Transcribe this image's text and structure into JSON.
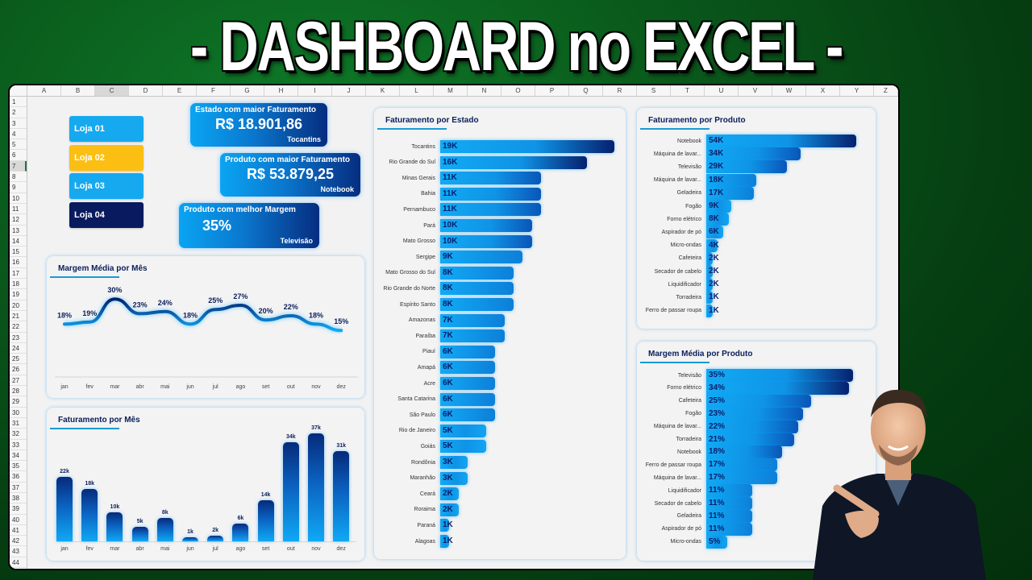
{
  "banner": {
    "title": "- DASHBOARD no EXCEL -"
  },
  "spreadsheet": {
    "columns": [
      "A",
      "B",
      "C",
      "D",
      "E",
      "F",
      "G",
      "H",
      "I",
      "J",
      "K",
      "L",
      "M",
      "N",
      "O",
      "P",
      "Q",
      "R",
      "S",
      "T",
      "U",
      "V",
      "W",
      "X",
      "Y",
      "Z"
    ],
    "selected_column": "C",
    "rows": [
      "1",
      "2",
      "3",
      "4",
      "5",
      "6",
      "7",
      "8",
      "9",
      "10",
      "11",
      "12",
      "13",
      "14",
      "15",
      "16",
      "17",
      "18",
      "19",
      "20",
      "21",
      "22",
      "23",
      "24",
      "25",
      "26",
      "27",
      "28",
      "29",
      "30",
      "31",
      "32",
      "33",
      "34",
      "35",
      "36",
      "37",
      "38",
      "39",
      "40",
      "41",
      "42",
      "43",
      "44"
    ],
    "selected_row": "7"
  },
  "store_buttons": [
    {
      "label": "Loja 01",
      "color": "#16a9ef"
    },
    {
      "label": "Loja 02",
      "color": "#fbbf14"
    },
    {
      "label": "Loja 03",
      "color": "#16a9ef"
    },
    {
      "label": "Loja 04",
      "color": "#0a1a5e"
    }
  ],
  "kpis": [
    {
      "title": "Estado com maior Faturamento",
      "value": "R$ 18.901,86",
      "subtitle": "Tocantins"
    },
    {
      "title": "Produto com maior Faturamento",
      "value": "R$ 53.879,25",
      "subtitle": "Notebook"
    },
    {
      "title": "Produto com melhor Margem",
      "value": "35%",
      "subtitle": "Televisão"
    }
  ],
  "colors": {
    "bar_light": "#12aaf4",
    "bar_dark": "#06206e",
    "highlight_yellow": "#fbbf14",
    "title_navy": "#0a1f5c",
    "accent_line": "#1a9ad8"
  },
  "chart_data": [
    {
      "type": "line",
      "title": "Margem Média por Mês",
      "categories": [
        "jan",
        "fev",
        "mar",
        "abr",
        "mai",
        "jun",
        "jul",
        "ago",
        "set",
        "out",
        "nov",
        "dez"
      ],
      "values": [
        18,
        19,
        30,
        23,
        24,
        18,
        25,
        27,
        20,
        22,
        18,
        15
      ],
      "labels": [
        "18%",
        "19%",
        "30%",
        "23%",
        "24%",
        "18%",
        "25%",
        "27%",
        "20%",
        "22%",
        "18%",
        "15%"
      ],
      "unit": "%",
      "grid": false,
      "legend": "none"
    },
    {
      "type": "bar",
      "title": "Faturamento por Mês",
      "categories": [
        "jan",
        "fev",
        "mar",
        "abr",
        "mai",
        "jun",
        "jul",
        "ago",
        "set",
        "out",
        "nov",
        "dez"
      ],
      "values": [
        22,
        18,
        10,
        5,
        8,
        1,
        2,
        6,
        14,
        34,
        37,
        31
      ],
      "labels": [
        "22k",
        "18k",
        "10k",
        "5k",
        "8k",
        "1k",
        "2k",
        "6k",
        "14k",
        "34k",
        "37k",
        "31k"
      ],
      "unit": "k",
      "grid": false,
      "legend": "none"
    },
    {
      "type": "bar",
      "orientation": "horizontal",
      "title": "Faturamento por Estado",
      "categories": [
        "Tocantins",
        "Rio Grande do Sul",
        "Minas Gerais",
        "Bahia",
        "Pernambuco",
        "Pará",
        "Mato Grosso",
        "Sergipe",
        "Mato Grosso do Sul",
        "Rio Grande do Norte",
        "Espírito Santo",
        "Amazonas",
        "Paraíba",
        "Piauí",
        "Amapá",
        "Acre",
        "Santa Catarina",
        "São Paulo",
        "Rio de Janeiro",
        "Goiás",
        "Rondônia",
        "Maranhão",
        "Ceará",
        "Roraima",
        "Paraná",
        "Alagoas"
      ],
      "values": [
        19,
        16,
        11,
        11,
        11,
        10,
        10,
        9,
        8,
        8,
        8,
        7,
        7,
        6,
        6,
        6,
        6,
        6,
        5,
        5,
        3,
        3,
        2,
        2,
        1,
        1
      ],
      "labels": [
        "19K",
        "16K",
        "11K",
        "11K",
        "11K",
        "10K",
        "10K",
        "9K",
        "8K",
        "8K",
        "8K",
        "7K",
        "7K",
        "6K",
        "6K",
        "6K",
        "6K",
        "6K",
        "5K",
        "5K",
        "3K",
        "3K",
        "2K",
        "2K",
        "1K",
        "1K"
      ],
      "unit": "K"
    },
    {
      "type": "bar",
      "orientation": "horizontal",
      "title": "Faturamento por Produto",
      "categories": [
        "Notebook",
        "Máquina de lavar...",
        "Televisão",
        "Máquina de lavar...",
        "Geladeira",
        "Fogão",
        "Forno elétrico",
        "Aspirador de pó",
        "Micro-ondas",
        "Cafeteira",
        "Secador de cabelo",
        "Liquidificador",
        "Torradeira",
        "Ferro de passar roupa"
      ],
      "values": [
        54,
        34,
        29,
        18,
        17,
        9,
        8,
        6,
        4,
        2,
        2,
        2,
        1,
        1
      ],
      "labels": [
        "54K",
        "34K",
        "29K",
        "18K",
        "17K",
        "9K",
        "8K",
        "6K",
        "4K",
        "2K",
        "2K",
        "2K",
        "1K",
        "1K"
      ],
      "unit": "K"
    },
    {
      "type": "bar",
      "orientation": "horizontal",
      "title": "Margem Média por Produto",
      "categories": [
        "Televisão",
        "Forno elétrico",
        "Cafeteira",
        "Fogão",
        "Máquina de lavar...",
        "Torradeira",
        "Notebook",
        "Ferro de passar roupa",
        "Máquina de lavar...",
        "Liquidificador",
        "Secador de cabelo",
        "Geladeira",
        "Aspirador de pó",
        "Micro-ondas"
      ],
      "values": [
        35,
        34,
        25,
        23,
        22,
        21,
        18,
        17,
        17,
        11,
        11,
        11,
        11,
        5
      ],
      "labels": [
        "35%",
        "34%",
        "25%",
        "23%",
        "22%",
        "21%",
        "18%",
        "17%",
        "17%",
        "11%",
        "11%",
        "11%",
        "11%",
        "5%"
      ],
      "unit": "%"
    }
  ]
}
